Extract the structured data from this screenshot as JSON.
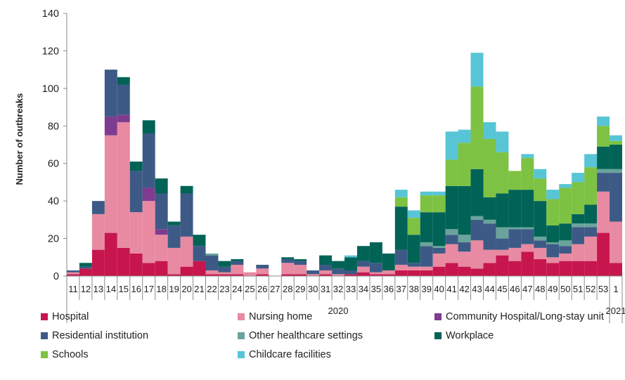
{
  "chart_data": {
    "type": "bar",
    "stacked": true,
    "xlabel": "",
    "ylabel": "Number of outbreaks",
    "ylim": [
      0,
      140
    ],
    "yticks": [
      0,
      20,
      40,
      60,
      80,
      100,
      120,
      140
    ],
    "grid": false,
    "legend_position": "bottom",
    "year_labels": [
      {
        "label": "2020",
        "span_start": 0,
        "span_end": 42
      },
      {
        "label": "2021",
        "span_start": 43,
        "span_end": 43
      }
    ],
    "categories": [
      "11",
      "12",
      "13",
      "14",
      "15",
      "16",
      "17",
      "18",
      "19",
      "20",
      "21",
      "22",
      "23",
      "24",
      "25",
      "26",
      "27",
      "28",
      "29",
      "30",
      "31",
      "32",
      "33",
      "34",
      "35",
      "36",
      "37",
      "38",
      "39",
      "40",
      "41",
      "42",
      "43",
      "44",
      "45",
      "46",
      "47",
      "48",
      "49",
      "50",
      "51",
      "52",
      "53",
      "1"
    ],
    "series": [
      {
        "name": "Hospital",
        "color": "#c7164e",
        "values": [
          1,
          4,
          14,
          23,
          15,
          12,
          7,
          8,
          1,
          5,
          8,
          1,
          1,
          1,
          0,
          1,
          0,
          1,
          1,
          0,
          1,
          0,
          1,
          2,
          1,
          1,
          3,
          3,
          3,
          5,
          7,
          5,
          4,
          7,
          11,
          8,
          13,
          9,
          7,
          8,
          8,
          8,
          23,
          7
        ]
      },
      {
        "name": "Nursing home",
        "color": "#e88aa2",
        "values": [
          1,
          0,
          19,
          52,
          67,
          22,
          33,
          14,
          14,
          16,
          0,
          2,
          1,
          5,
          2,
          3,
          0,
          6,
          5,
          1,
          2,
          1,
          0,
          3,
          1,
          2,
          3,
          2,
          2,
          7,
          10,
          8,
          15,
          7,
          3,
          7,
          4,
          6,
          3,
          4,
          9,
          13,
          22,
          22
        ]
      },
      {
        "name": "Community Hospital/Long-stay unit",
        "color": "#7d3c8f",
        "values": [
          0,
          0,
          0,
          10,
          4,
          0,
          7,
          3,
          0,
          0,
          0,
          0,
          0,
          0,
          0,
          0,
          0,
          0,
          0,
          0,
          0,
          0,
          0,
          0,
          0,
          0,
          0,
          0,
          0,
          0,
          0,
          0,
          0,
          0,
          0,
          0,
          0,
          0,
          0,
          0,
          0,
          0,
          0,
          0
        ]
      },
      {
        "name": "Residential institution",
        "color": "#3d5a86",
        "values": [
          1,
          1,
          7,
          25,
          16,
          22,
          29,
          19,
          12,
          23,
          8,
          8,
          3,
          2,
          0,
          2,
          0,
          2,
          2,
          2,
          3,
          3,
          2,
          3,
          5,
          0,
          8,
          2,
          11,
          3,
          5,
          5,
          11,
          14,
          6,
          10,
          8,
          4,
          7,
          4,
          9,
          5,
          10,
          26
        ]
      },
      {
        "name": "Other healthcare settings",
        "color": "#6aa39b",
        "values": [
          0,
          0,
          0,
          0,
          0,
          0,
          0,
          0,
          0,
          0,
          0,
          1,
          0,
          0,
          0,
          0,
          0,
          0,
          0,
          0,
          0,
          0,
          0,
          0,
          0,
          0,
          0,
          0,
          2,
          1,
          3,
          4,
          2,
          2,
          6,
          1,
          1,
          2,
          1,
          3,
          2,
          2,
          2,
          2
        ]
      },
      {
        "name": "Workplace",
        "color": "#006356",
        "values": [
          0,
          2,
          0,
          0,
          4,
          5,
          7,
          8,
          2,
          4,
          6,
          0,
          3,
          1,
          0,
          0,
          0,
          1,
          1,
          0,
          5,
          4,
          7,
          8,
          11,
          9,
          23,
          15,
          16,
          18,
          23,
          26,
          25,
          12,
          18,
          20,
          20,
          19,
          9,
          9,
          5,
          10,
          12,
          13
        ]
      },
      {
        "name": "Schools",
        "color": "#7dc242",
        "values": [
          0,
          0,
          0,
          0,
          0,
          0,
          0,
          0,
          0,
          0,
          0,
          0,
          0,
          0,
          0,
          0,
          0,
          0,
          0,
          0,
          0,
          0,
          0,
          0,
          0,
          0,
          5,
          9,
          9,
          9,
          14,
          23,
          44,
          31,
          22,
          10,
          17,
          12,
          14,
          19,
          17,
          20,
          11,
          2
        ]
      },
      {
        "name": "Childcare facilities",
        "color": "#57c5d6",
        "values": [
          0,
          0,
          0,
          0,
          0,
          0,
          0,
          0,
          0,
          0,
          0,
          0,
          0,
          0,
          0,
          0,
          0,
          0,
          0,
          0,
          0,
          0,
          1,
          0,
          0,
          0,
          4,
          4,
          2,
          2,
          15,
          7,
          18,
          9,
          11,
          0,
          2,
          5,
          5,
          2,
          5,
          7,
          5,
          3
        ]
      }
    ]
  }
}
